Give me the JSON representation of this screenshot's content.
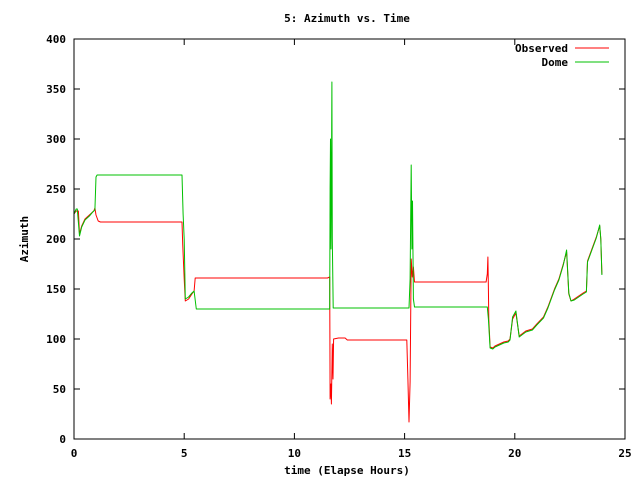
{
  "chart_data": {
    "type": "line",
    "title": "5: Azimuth vs. Time",
    "xlabel": "time (Elapse Hours)",
    "ylabel": "Azimuth",
    "xlim": [
      0,
      25
    ],
    "ylim": [
      0,
      400
    ],
    "xticks": [
      0,
      5,
      10,
      15,
      20,
      25
    ],
    "yticks": [
      0,
      50,
      100,
      150,
      200,
      250,
      300,
      350,
      400
    ],
    "grid": false,
    "legend_position": "top-right",
    "series": [
      {
        "name": "Observed",
        "color": "#ff0000",
        "points": [
          [
            0.0,
            225
          ],
          [
            0.1,
            228
          ],
          [
            0.2,
            228
          ],
          [
            0.25,
            205
          ],
          [
            0.35,
            213
          ],
          [
            0.5,
            220
          ],
          [
            0.7,
            224
          ],
          [
            0.9,
            228
          ],
          [
            0.95,
            231
          ],
          [
            1.0,
            224
          ],
          [
            1.1,
            218
          ],
          [
            1.2,
            217
          ],
          [
            2.0,
            217
          ],
          [
            3.0,
            217
          ],
          [
            4.0,
            217
          ],
          [
            4.9,
            217
          ],
          [
            4.93,
            195
          ],
          [
            5.0,
            160
          ],
          [
            5.05,
            138
          ],
          [
            5.2,
            140
          ],
          [
            5.35,
            145
          ],
          [
            5.45,
            148
          ],
          [
            5.5,
            161
          ],
          [
            6.0,
            161
          ],
          [
            8.0,
            161
          ],
          [
            10.0,
            161
          ],
          [
            11.5,
            161
          ],
          [
            11.6,
            162
          ],
          [
            11.62,
            40
          ],
          [
            11.66,
            55
          ],
          [
            11.68,
            35
          ],
          [
            11.72,
            95
          ],
          [
            11.75,
            60
          ],
          [
            11.78,
            100
          ],
          [
            12.0,
            101
          ],
          [
            12.3,
            101
          ],
          [
            12.4,
            99
          ],
          [
            13.0,
            99
          ],
          [
            14.0,
            99
          ],
          [
            15.0,
            99
          ],
          [
            15.1,
            99
          ],
          [
            15.15,
            60
          ],
          [
            15.2,
            17
          ],
          [
            15.25,
            57
          ],
          [
            15.3,
            180
          ],
          [
            15.35,
            162
          ],
          [
            15.4,
            172
          ],
          [
            15.45,
            157
          ],
          [
            16.0,
            157
          ],
          [
            17.0,
            157
          ],
          [
            18.0,
            157
          ],
          [
            18.7,
            157
          ],
          [
            18.75,
            165
          ],
          [
            18.78,
            182
          ],
          [
            18.8,
            150
          ],
          [
            18.82,
            120
          ],
          [
            18.88,
            92
          ],
          [
            19.0,
            91
          ],
          [
            19.1,
            93
          ],
          [
            19.3,
            95
          ],
          [
            19.5,
            97
          ],
          [
            19.7,
            98
          ],
          [
            19.78,
            100
          ],
          [
            19.9,
            120
          ],
          [
            20.05,
            126
          ],
          [
            20.2,
            103
          ],
          [
            20.5,
            108
          ],
          [
            20.8,
            110
          ],
          [
            21.0,
            115
          ],
          [
            21.3,
            122
          ],
          [
            21.5,
            132
          ],
          [
            21.8,
            150
          ],
          [
            22.0,
            160
          ],
          [
            22.2,
            175
          ],
          [
            22.35,
            187
          ],
          [
            22.45,
            145
          ],
          [
            22.55,
            138
          ],
          [
            22.7,
            140
          ],
          [
            22.9,
            143
          ],
          [
            23.1,
            146
          ],
          [
            23.25,
            148
          ],
          [
            23.3,
            178
          ],
          [
            23.5,
            190
          ],
          [
            23.7,
            202
          ],
          [
            23.85,
            213
          ],
          [
            23.9,
            200
          ],
          [
            23.95,
            165
          ]
        ]
      },
      {
        "name": "Dome",
        "color": "#00c000",
        "points": [
          [
            0.0,
            225
          ],
          [
            0.1,
            230
          ],
          [
            0.15,
            230
          ],
          [
            0.25,
            203
          ],
          [
            0.35,
            212
          ],
          [
            0.5,
            219
          ],
          [
            0.7,
            223
          ],
          [
            0.85,
            227
          ],
          [
            0.95,
            229
          ],
          [
            1.0,
            262
          ],
          [
            1.05,
            264
          ],
          [
            2.0,
            264
          ],
          [
            3.0,
            264
          ],
          [
            4.0,
            264
          ],
          [
            4.9,
            264
          ],
          [
            4.95,
            225
          ],
          [
            5.0,
            200
          ],
          [
            5.05,
            140
          ],
          [
            5.2,
            142
          ],
          [
            5.35,
            146
          ],
          [
            5.45,
            148
          ],
          [
            5.55,
            130
          ],
          [
            7.0,
            130
          ],
          [
            9.0,
            130
          ],
          [
            11.0,
            130
          ],
          [
            11.6,
            130
          ],
          [
            11.62,
            250
          ],
          [
            11.64,
            300
          ],
          [
            11.66,
            190
          ],
          [
            11.68,
            250
          ],
          [
            11.7,
            357
          ],
          [
            11.72,
            200
          ],
          [
            11.76,
            131
          ],
          [
            12.0,
            131
          ],
          [
            13.0,
            131
          ],
          [
            14.0,
            131
          ],
          [
            15.0,
            131
          ],
          [
            15.2,
            131
          ],
          [
            15.25,
            160
          ],
          [
            15.3,
            274
          ],
          [
            15.33,
            190
          ],
          [
            15.36,
            238
          ],
          [
            15.4,
            140
          ],
          [
            15.45,
            132
          ],
          [
            16.0,
            132
          ],
          [
            17.0,
            132
          ],
          [
            18.0,
            132
          ],
          [
            18.75,
            132
          ],
          [
            18.8,
            120
          ],
          [
            18.88,
            91
          ],
          [
            19.0,
            90
          ],
          [
            19.1,
            92
          ],
          [
            19.3,
            94
          ],
          [
            19.5,
            96
          ],
          [
            19.7,
            97
          ],
          [
            19.78,
            99
          ],
          [
            19.9,
            122
          ],
          [
            20.05,
            128
          ],
          [
            20.2,
            102
          ],
          [
            20.5,
            107
          ],
          [
            20.8,
            109
          ],
          [
            21.0,
            114
          ],
          [
            21.3,
            121
          ],
          [
            21.5,
            131
          ],
          [
            21.8,
            149
          ],
          [
            22.0,
            159
          ],
          [
            22.2,
            174
          ],
          [
            22.35,
            189
          ],
          [
            22.45,
            146
          ],
          [
            22.55,
            138
          ],
          [
            22.7,
            139
          ],
          [
            22.9,
            142
          ],
          [
            23.1,
            145
          ],
          [
            23.25,
            147
          ],
          [
            23.3,
            177
          ],
          [
            23.5,
            189
          ],
          [
            23.7,
            201
          ],
          [
            23.85,
            214
          ],
          [
            23.9,
            200
          ],
          [
            23.95,
            164
          ]
        ]
      }
    ]
  }
}
